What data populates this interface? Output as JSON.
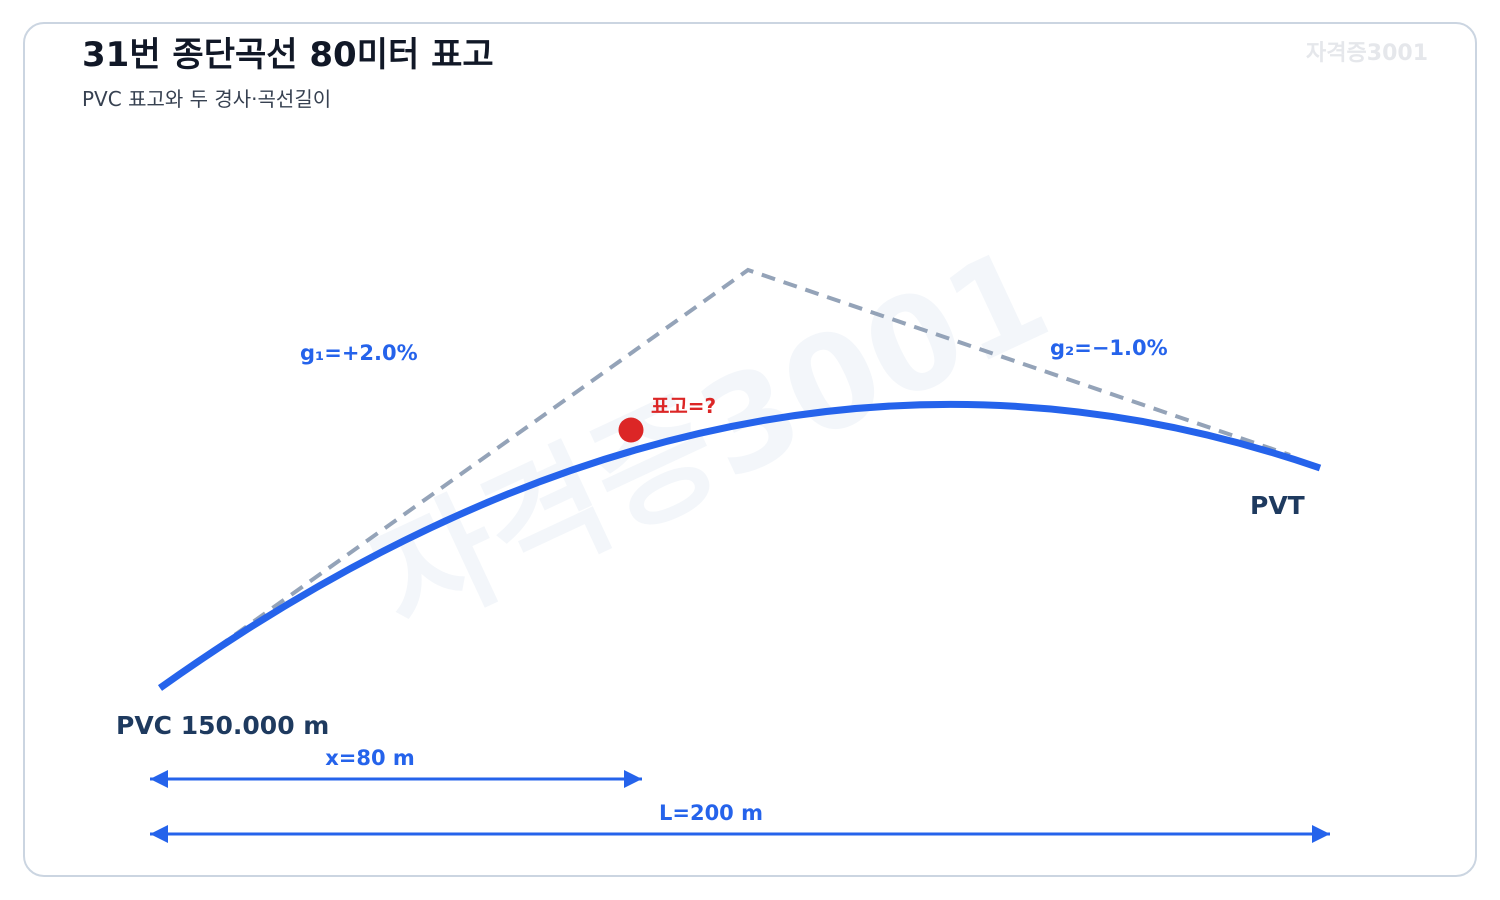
{
  "header": {
    "title": "31번 종단곡선 80미터 표고",
    "subtitle": "PVC 표고와 두 경사·곡선길이",
    "brand": "자격증3001"
  },
  "diagram": {
    "watermark": "자격증3001",
    "grade_1": "g₁=+2.0%",
    "grade_2": "g₂=−1.0%",
    "unknown_point": "표고=?",
    "pvc_label": "PVC 150.000 m",
    "pvt_label": "PVT",
    "x_dimension": "x=80 m",
    "length_dimension": "L=200 m"
  }
}
